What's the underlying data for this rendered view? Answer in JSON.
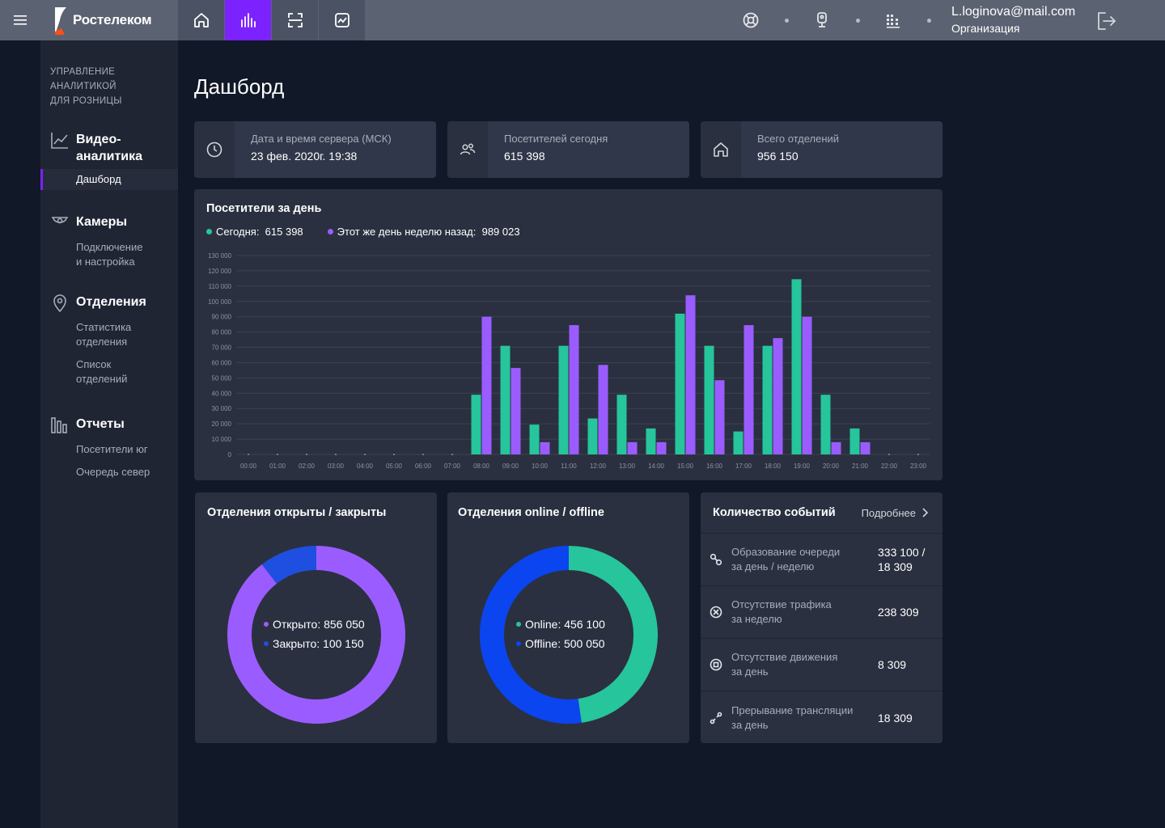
{
  "app": {
    "brand": "Ростелеком"
  },
  "topbar": {
    "user_email": "L.loginova@mail.com",
    "user_org": "Организация"
  },
  "sidebar": {
    "heading": [
      "УПРАВЛЕНИЕ",
      "АНАЛИТИКОЙ",
      "ДЛЯ РОЗНИЦЫ"
    ],
    "sections": [
      {
        "title_lines": [
          "Видео-",
          "аналитика"
        ],
        "items": [
          {
            "label": "Дашборд",
            "active": true
          }
        ]
      },
      {
        "title_lines": [
          "Камеры"
        ],
        "items": [
          {
            "label_lines": [
              "Подключение",
              "и настройка"
            ]
          }
        ]
      },
      {
        "title_lines": [
          "Отделения"
        ],
        "items": [
          {
            "label_lines": [
              "Статистика",
              "отделения"
            ]
          },
          {
            "label_lines": [
              "Список",
              "отделений"
            ]
          }
        ]
      },
      {
        "title_lines": [
          "Отчеты"
        ],
        "items": [
          {
            "label": "Посетители юг"
          },
          {
            "label": "Очередь север"
          }
        ]
      }
    ]
  },
  "page": {
    "title": "Дашборд"
  },
  "stats": [
    {
      "icon": "clock-icon",
      "label": "Дата и время сервера (МСК)",
      "value": "23 фев. 2020г. 19:38"
    },
    {
      "icon": "visitors-icon",
      "label": "Посетителей сегодня",
      "value": "615 398"
    },
    {
      "icon": "home-icon",
      "label": "Всего отделений",
      "value": "956 150"
    }
  ],
  "visitors_chart": {
    "title": "Посетители за день",
    "legend": [
      {
        "label": "Сегодня:",
        "value": "615 398",
        "color": "#26c59b"
      },
      {
        "label": "Этот же день неделю назад:",
        "value": "989 023",
        "color": "#9b5cff"
      }
    ]
  },
  "chart_data": [
    {
      "type": "bar",
      "title": "Посетители за день",
      "categories": [
        "00:00",
        "01:00",
        "02:00",
        "03:00",
        "04:00",
        "05:00",
        "06:00",
        "07:00",
        "08:00",
        "09:00",
        "10:00",
        "11:00",
        "12:00",
        "13:00",
        "14:00",
        "15:00",
        "16:00",
        "17:00",
        "18:00",
        "19:00",
        "20:00",
        "21:00",
        "22:00",
        "23:00"
      ],
      "series": [
        {
          "name": "Сегодня",
          "color": "#26c59b",
          "values": [
            0,
            0,
            0,
            0,
            0,
            0,
            0,
            0,
            39000,
            71000,
            19500,
            71000,
            23500,
            39000,
            17000,
            92000,
            71000,
            15000,
            71000,
            114500,
            39000,
            17000,
            0,
            0
          ]
        },
        {
          "name": "Этот же день неделю назад",
          "color": "#9b5cff",
          "values": [
            0,
            0,
            0,
            0,
            0,
            0,
            0,
            0,
            90000,
            56500,
            8000,
            84500,
            58500,
            8000,
            8000,
            104000,
            48500,
            84500,
            76000,
            90000,
            8000,
            8000,
            0,
            0
          ]
        }
      ],
      "ylim": [
        0,
        130000
      ],
      "yticks": [
        "0",
        "10 000",
        "20 000",
        "30 000",
        "40 000",
        "50 000",
        "60 000",
        "70 000",
        "80 000",
        "90 000",
        "100 000",
        "110 000",
        "120 000",
        "130 000"
      ],
      "grid": true,
      "legend": "top-left"
    },
    {
      "type": "pie",
      "title": "Отделения открыты / закрыты",
      "labels": [
        "Открыто",
        "Закрыто"
      ],
      "values": [
        856050,
        100150
      ],
      "display": [
        "Открыто: 856 050",
        "Закрыто: 100 150"
      ],
      "colors": [
        "#9b5cff",
        "#1f4fe0"
      ]
    },
    {
      "type": "pie",
      "title": "Отделения online / offline",
      "labels": [
        "Online",
        "Offline"
      ],
      "values": [
        456100,
        500050
      ],
      "display": [
        "Online: 456 100",
        "Offline: 500 050"
      ],
      "colors": [
        "#26c59b",
        "#0a45ef"
      ]
    }
  ],
  "events": {
    "title": "Количество событий",
    "more_label": "Подробнее",
    "rows": [
      {
        "icon": "link-icon",
        "label_lines": [
          "Образование очереди",
          "за день / неделю"
        ],
        "value_lines": [
          "333 100 /",
          "18 309"
        ]
      },
      {
        "icon": "no-traffic-icon",
        "label_lines": [
          "Отсутствие трафика",
          "за неделю"
        ],
        "value_lines": [
          "238 309"
        ]
      },
      {
        "icon": "no-motion-icon",
        "label_lines": [
          "Отсутствие движения",
          "за день"
        ],
        "value_lines": [
          "8 309"
        ]
      },
      {
        "icon": "broken-stream-icon",
        "label_lines": [
          "Прерывание трансляции",
          "за день"
        ],
        "value_lines": [
          "18 309"
        ]
      }
    ]
  }
}
